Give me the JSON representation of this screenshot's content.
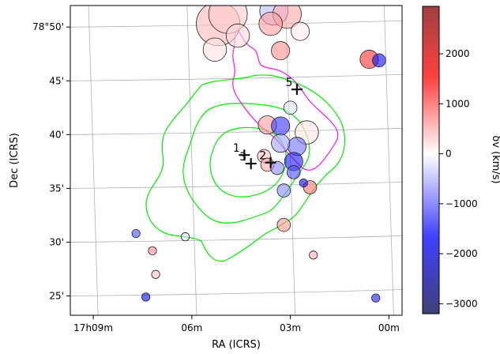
{
  "chart_data": {
    "type": "scatter",
    "xlabel": "RA (ICRS)",
    "ylabel": "Dec (ICRS)",
    "x_ticks": [
      "17h09m",
      "06m",
      "03m",
      "00m"
    ],
    "x_tick_values_min": [
      9,
      6,
      3,
      0
    ],
    "y_ticks": [
      "78°50'",
      "45'",
      "40'",
      "35'",
      "30'",
      "25'"
    ],
    "y_tick_values_arcmin": [
      50,
      45,
      40,
      35,
      30,
      25
    ],
    "xlim_ra_min": [
      9.7,
      -0.4
    ],
    "ylim_dec_arcmin": [
      23.2,
      52.0
    ],
    "grid": true,
    "colorbar": {
      "label": "δv (km/s)",
      "min": -3200,
      "max": 2950,
      "ticks": [
        2000,
        1000,
        0,
        -1000,
        -2000,
        -3000
      ],
      "tick_labels": [
        "2000",
        "1000",
        "0",
        "−1000",
        "−2000",
        "−3000"
      ],
      "colormap": "seismic",
      "low_color": "#0000ff",
      "mid_color": "#ffffff",
      "high_color": "#ff0000"
    },
    "markers": [
      {
        "label": "1",
        "ra_min": 4.4,
        "dec_arcmin": 38.1
      },
      {
        "label": "2",
        "ra_min": 3.6,
        "dec_arcmin": 37.4
      },
      {
        "label": "3",
        "ra_min": 4.2,
        "dec_arcmin": 37.3
      },
      {
        "label": "5",
        "ra_min": 2.8,
        "dec_arcmin": 44.2
      }
    ],
    "galaxies": [
      {
        "ra_min": 5.2,
        "dec_arcmin": 50.3,
        "dv": 700,
        "size": 8
      },
      {
        "ra_min": 4.9,
        "dec_arcmin": 51.2,
        "dv": 500,
        "size": 7
      },
      {
        "ra_min": 3.5,
        "dec_arcmin": 51.5,
        "dv": -900,
        "size": 5
      },
      {
        "ra_min": 3.1,
        "dec_arcmin": 51.2,
        "dv": 900,
        "size": 5
      },
      {
        "ra_min": 3.6,
        "dec_arcmin": 50.3,
        "dv": 1000,
        "size": 4
      },
      {
        "ra_min": 4.6,
        "dec_arcmin": 49.2,
        "dv": 300,
        "size": 4
      },
      {
        "ra_min": 5.3,
        "dec_arcmin": 47.9,
        "dv": 200,
        "size": 4
      },
      {
        "ra_min": 2.7,
        "dec_arcmin": 49.6,
        "dv": 100,
        "size": 3
      },
      {
        "ra_min": 3.3,
        "dec_arcmin": 47.8,
        "dv": 1200,
        "size": 3
      },
      {
        "ra_min": 0.6,
        "dec_arcmin": 47.0,
        "dv": 2300,
        "size": 3
      },
      {
        "ra_min": 0.3,
        "dec_arcmin": 46.9,
        "dv": -3000,
        "size": 2
      },
      {
        "ra_min": 3.0,
        "dec_arcmin": 42.5,
        "dv": -500,
        "size": 2
      },
      {
        "ra_min": 3.7,
        "dec_arcmin": 40.9,
        "dv": 1000,
        "size": 3
      },
      {
        "ra_min": 3.3,
        "dec_arcmin": 40.8,
        "dv": -2500,
        "size": 3
      },
      {
        "ra_min": 2.5,
        "dec_arcmin": 40.2,
        "dv": 200,
        "size": 4
      },
      {
        "ra_min": 2.8,
        "dec_arcmin": 38.9,
        "dv": -1800,
        "size": 3
      },
      {
        "ra_min": 2.9,
        "dec_arcmin": 37.5,
        "dv": -2800,
        "size": 3
      },
      {
        "ra_min": 2.9,
        "dec_arcmin": 36.5,
        "dv": -2200,
        "size": 2
      },
      {
        "ra_min": 3.3,
        "dec_arcmin": 39.2,
        "dv": -1200,
        "size": 3
      },
      {
        "ra_min": 3.8,
        "dec_arcmin": 38.0,
        "dv": 600,
        "size": 2
      },
      {
        "ra_min": 3.7,
        "dec_arcmin": 37.2,
        "dv": 900,
        "size": 2
      },
      {
        "ra_min": 3.4,
        "dec_arcmin": 36.9,
        "dv": -1500,
        "size": 2
      },
      {
        "ra_min": 3.2,
        "dec_arcmin": 34.8,
        "dv": -1500,
        "size": 2
      },
      {
        "ra_min": 2.4,
        "dec_arcmin": 35.1,
        "dv": 1500,
        "size": 2
      },
      {
        "ra_min": 2.6,
        "dec_arcmin": 35.5,
        "dv": -3000,
        "size": 1
      },
      {
        "ra_min": 3.2,
        "dec_arcmin": 31.6,
        "dv": 1100,
        "size": 2
      },
      {
        "ra_min": 2.3,
        "dec_arcmin": 28.8,
        "dv": 800,
        "size": 1
      },
      {
        "ra_min": 0.4,
        "dec_arcmin": 24.8,
        "dv": -2800,
        "size": 1
      },
      {
        "ra_min": 7.4,
        "dec_arcmin": 24.9,
        "dv": -3000,
        "size": 1
      },
      {
        "ra_min": 7.1,
        "dec_arcmin": 27.0,
        "dv": 600,
        "size": 1
      },
      {
        "ra_min": 7.7,
        "dec_arcmin": 30.8,
        "dv": -2200,
        "size": 1
      },
      {
        "ra_min": 7.2,
        "dec_arcmin": 29.2,
        "dv": 1200,
        "size": 1
      },
      {
        "ra_min": 6.2,
        "dec_arcmin": 30.5,
        "dv": -500,
        "size": 1
      }
    ]
  }
}
